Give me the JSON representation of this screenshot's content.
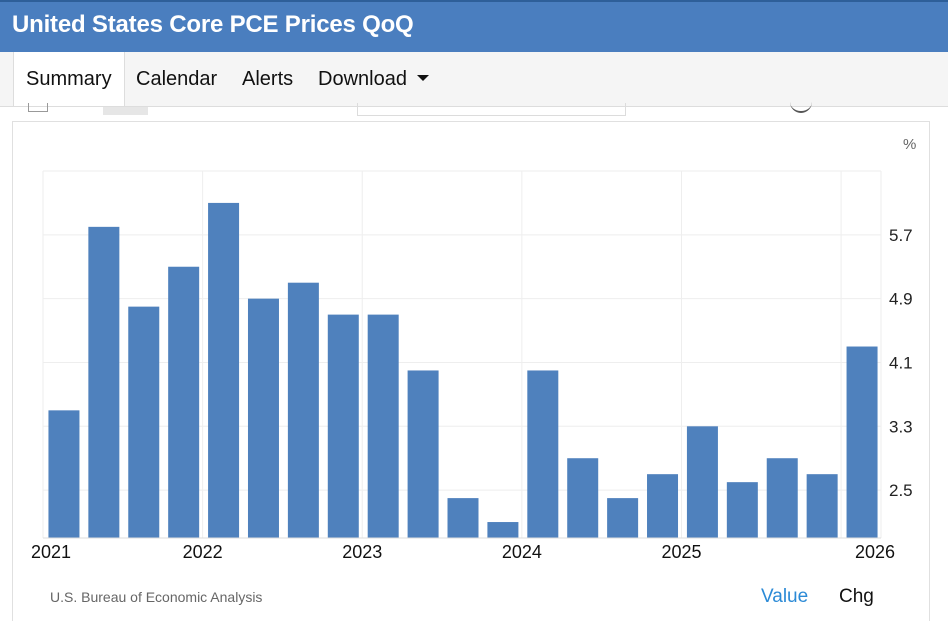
{
  "header": {
    "title": "United States Core PCE Prices QoQ"
  },
  "tabs": [
    {
      "label": "Summary",
      "active": true
    },
    {
      "label": "Calendar"
    },
    {
      "label": "Alerts"
    },
    {
      "label": "Download"
    }
  ],
  "chart_data": {
    "type": "bar",
    "unit": "%",
    "ylim": [
      1.9,
      6.5
    ],
    "yticks": [
      2.5,
      3.3,
      4.1,
      4.9,
      5.7
    ],
    "ytick_labels": [
      "2.5",
      "3.3",
      "4.1",
      "4.9",
      "5.7"
    ],
    "x_labels": [
      "2021",
      "2022",
      "2023",
      "2024",
      "2025",
      "2026"
    ],
    "categories": [
      "2021 Q1",
      "2021 Q2",
      "2021 Q3",
      "2021 Q4",
      "2022 Q1",
      "2022 Q2",
      "2022 Q3",
      "2022 Q4",
      "2023 Q1",
      "2023 Q2",
      "2023 Q3",
      "2023 Q4",
      "2024 Q1",
      "2024 Q2",
      "2024 Q3",
      "2024 Q4",
      "2025 Q1",
      "2025 Q2",
      "2025 Q3",
      "2025 Q4",
      "2026 Q1"
    ],
    "values": [
      3.5,
      5.8,
      4.8,
      5.3,
      6.1,
      4.9,
      5.1,
      4.7,
      4.7,
      4.0,
      2.4,
      2.1,
      4.0,
      2.9,
      2.4,
      2.7,
      3.3,
      2.6,
      2.9,
      2.7,
      4.3
    ],
    "grid": true,
    "bar_color": "#4f81bd"
  },
  "footer": {
    "source": "U.S. Bureau of Economic Analysis",
    "toggle_value": "Value",
    "toggle_chg": "Chg"
  }
}
